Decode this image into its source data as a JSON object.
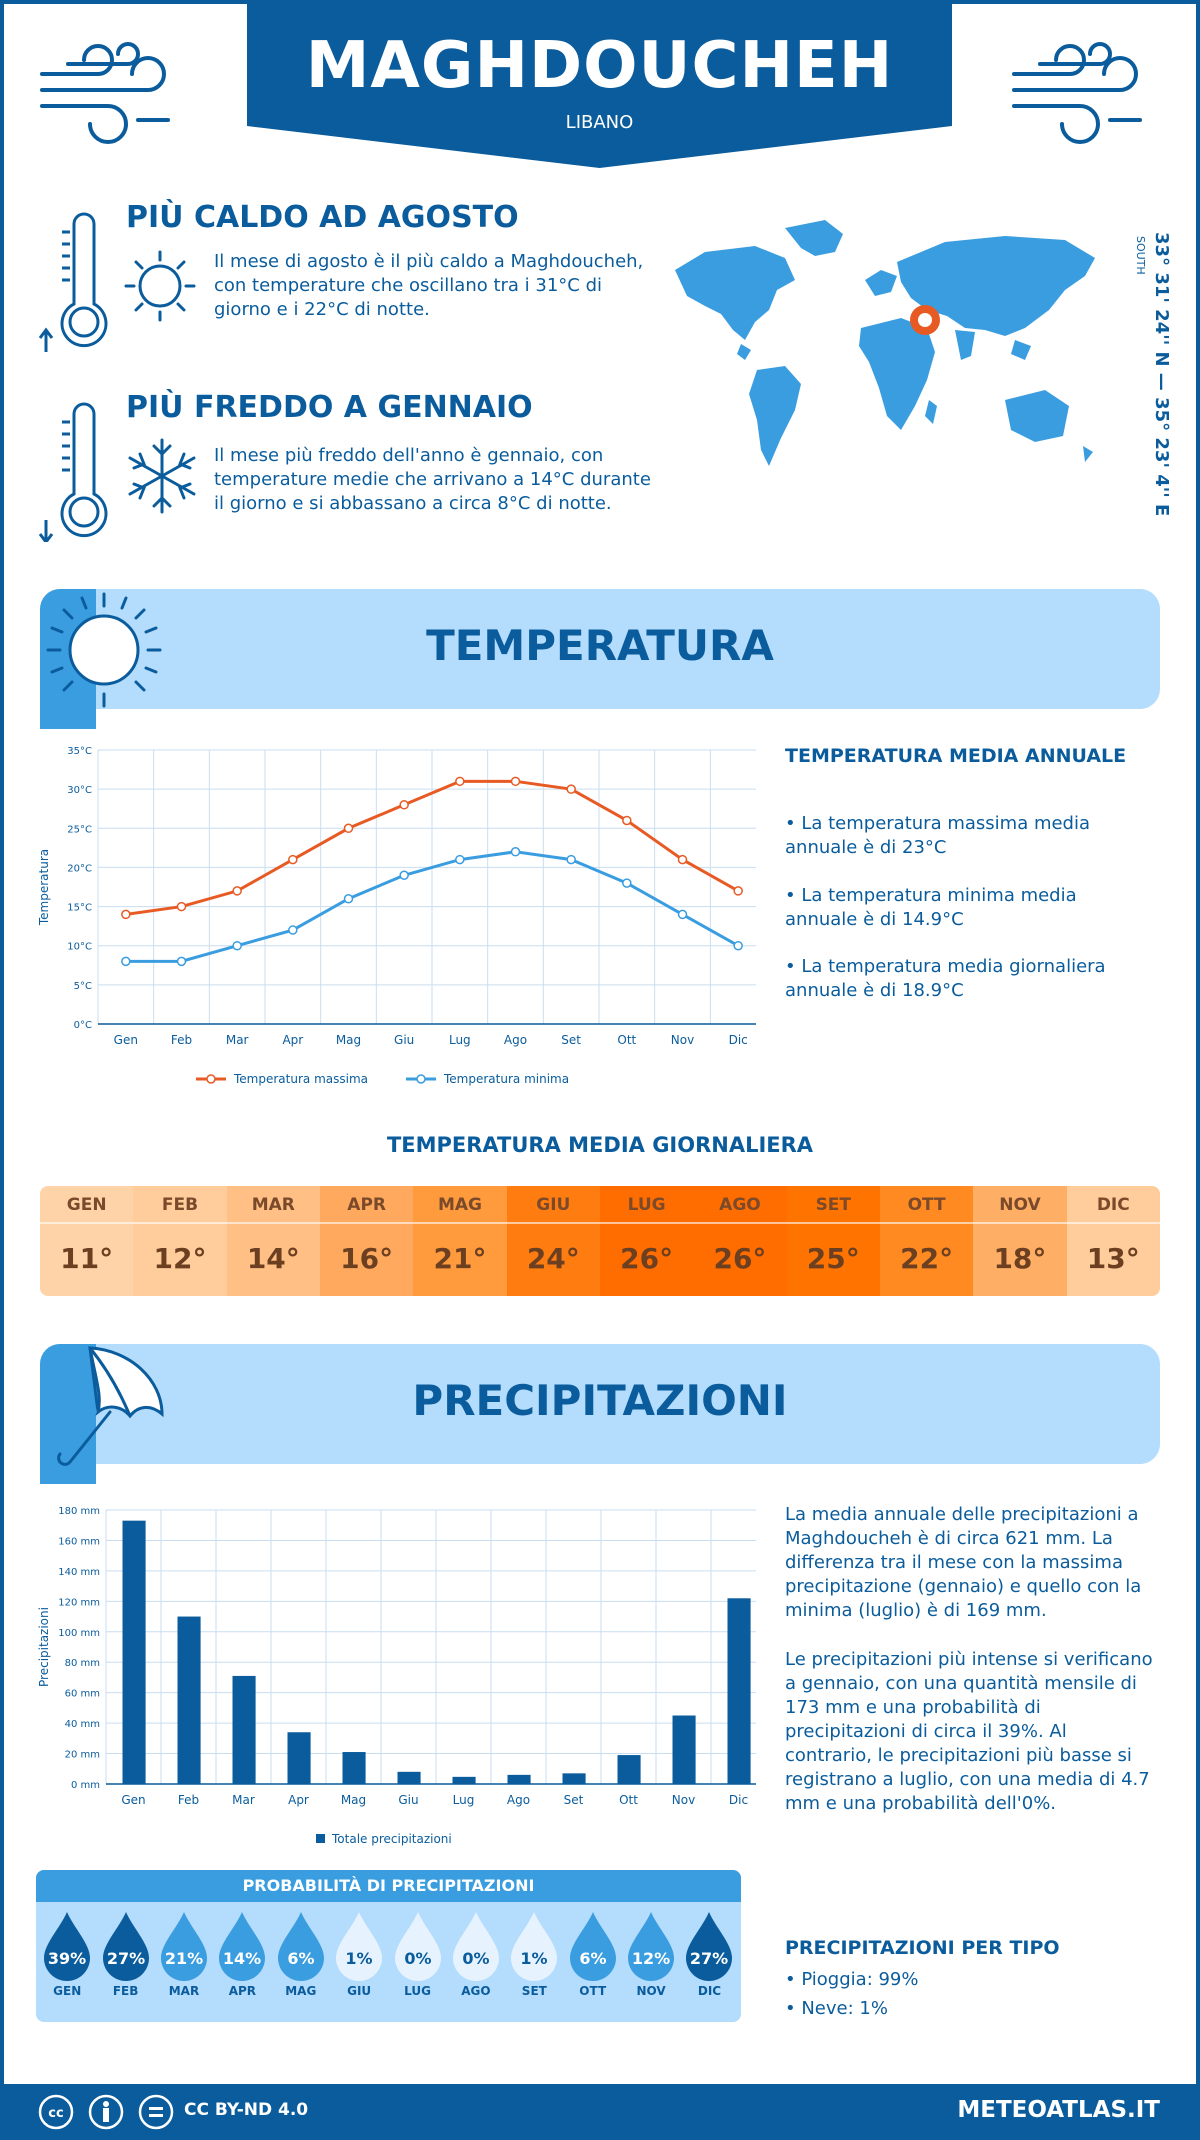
{
  "header": {
    "title": "MAGHDOUCHEH",
    "country": "LIBANO"
  },
  "facts": {
    "hot": {
      "title": "PIÙ CALDO AD AGOSTO",
      "text": "Il mese di agosto è il più caldo a Maghdoucheh, con temperature che oscillano tra i 31°C di giorno e i 22°C di notte."
    },
    "cold": {
      "title": "PIÙ FREDDO A GENNAIO",
      "text": "Il mese più freddo dell'anno è gennaio, con temperature medie che arrivano a 14°C durante il giorno e si abbassano a circa 8°C di notte."
    }
  },
  "coords": {
    "text": "33° 31' 24'' N — 35° 23' 4'' E",
    "small": "SOUTH"
  },
  "temperature": {
    "banner": "TEMPERATURA",
    "side_heading": "TEMPERATURA MEDIA ANNUALE",
    "bullets": [
      "• La temperatura massima media annuale è di 23°C",
      "• La temperatura minima media annuale è di 14.9°C",
      "• La temperatura media giornaliera annuale è di 18.9°C"
    ]
  },
  "chart_data": [
    {
      "type": "line",
      "categories": [
        "Gen",
        "Feb",
        "Mar",
        "Apr",
        "Mag",
        "Giu",
        "Lug",
        "Ago",
        "Set",
        "Ott",
        "Nov",
        "Dic"
      ],
      "series": [
        {
          "name": "Temperatura massima",
          "values": [
            14,
            15,
            17,
            21,
            25,
            28,
            31,
            31,
            30,
            26,
            21,
            17
          ],
          "color": "#e85a24"
        },
        {
          "name": "Temperatura minima",
          "values": [
            8,
            8,
            10,
            12,
            16,
            19,
            21,
            22,
            21,
            18,
            14,
            10
          ],
          "color": "#3a9de0"
        }
      ],
      "ylabel": "Temperatura",
      "ylim": [
        0,
        35
      ],
      "yticks": [
        "0°C",
        "5°C",
        "10°C",
        "15°C",
        "20°C",
        "25°C",
        "30°C",
        "35°C"
      ],
      "grid": true,
      "legend": "bottom"
    },
    {
      "type": "bar",
      "categories": [
        "Gen",
        "Feb",
        "Mar",
        "Apr",
        "Mag",
        "Giu",
        "Lug",
        "Ago",
        "Set",
        "Ott",
        "Nov",
        "Dic"
      ],
      "series": [
        {
          "name": "Totale precipitazioni",
          "values": [
            173,
            110,
            71,
            34,
            21,
            8,
            4.7,
            6,
            7,
            19,
            45,
            122
          ],
          "color": "#0a5c9c"
        }
      ],
      "ylabel": "Precipitazioni",
      "ylim": [
        0,
        180
      ],
      "yticks": [
        "0 mm",
        "20 mm",
        "40 mm",
        "60 mm",
        "80 mm",
        "100 mm",
        "120 mm",
        "140 mm",
        "160 mm",
        "180 mm"
      ],
      "grid": true,
      "legend": "bottom"
    }
  ],
  "daily": {
    "title": "TEMPERATURA MEDIA GIORNALIERA",
    "months": [
      "GEN",
      "FEB",
      "MAR",
      "APR",
      "MAG",
      "GIU",
      "LUG",
      "AGO",
      "SET",
      "OTT",
      "NOV",
      "DIC"
    ],
    "values": [
      "11°",
      "12°",
      "14°",
      "16°",
      "21°",
      "24°",
      "26°",
      "26°",
      "25°",
      "22°",
      "18°",
      "13°"
    ],
    "colors": [
      "#ffd3a8",
      "#ffcc9c",
      "#ffbf85",
      "#ffa95e",
      "#ff9a3d",
      "#ff7c10",
      "#ff6c00",
      "#ff6c00",
      "#ff7400",
      "#ff8a22",
      "#ffae66",
      "#ffcc9c"
    ]
  },
  "precip": {
    "banner": "PRECIPITAZIONI",
    "text1": "La media annuale delle precipitazioni a Maghdoucheh è di circa 621 mm. La differenza tra il mese con la massima precipitazione (gennaio) e quello con la minima (luglio) è di 169 mm.",
    "text2": "Le precipitazioni più intense si verificano a gennaio, con una quantità mensile di 173 mm e una probabilità di precipitazioni di circa il 39%. Al contrario, le precipitazioni più basse si registrano a luglio, con una media di 4.7 mm e una probabilità dell'0%.",
    "prob_title": "PROBABILITÀ DI PRECIPITAZIONI",
    "prob_months": [
      "GEN",
      "FEB",
      "MAR",
      "APR",
      "MAG",
      "GIU",
      "LUG",
      "AGO",
      "SET",
      "OTT",
      "NOV",
      "DIC"
    ],
    "prob_values": [
      "39%",
      "27%",
      "21%",
      "14%",
      "6%",
      "1%",
      "0%",
      "0%",
      "1%",
      "6%",
      "12%",
      "27%"
    ],
    "prob_colors": [
      "#0a5c9c",
      "#0a5c9c",
      "#3a9de0",
      "#3a9de0",
      "#3a9de0",
      "#e6f3ff",
      "#e6f3ff",
      "#e6f3ff",
      "#e6f3ff",
      "#3a9de0",
      "#3a9de0",
      "#0a5c9c"
    ],
    "type_heading": "PRECIPITAZIONI PER TIPO",
    "types": [
      "• Pioggia: 99%",
      "• Neve: 1%"
    ]
  },
  "footer": {
    "license": "CC BY-ND 4.0",
    "site": "METEOATLAS.IT"
  }
}
